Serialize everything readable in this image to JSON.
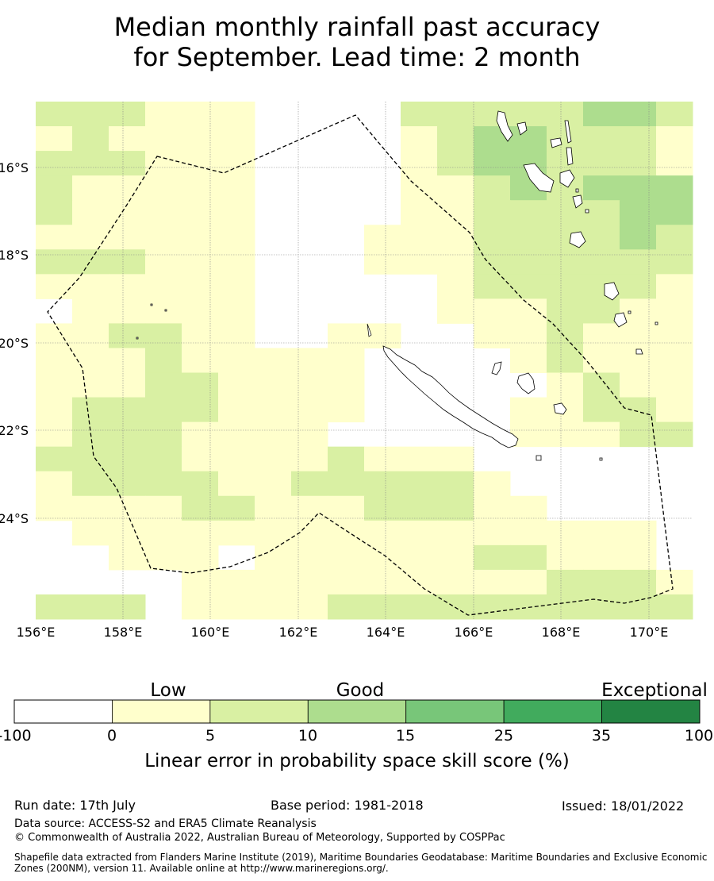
{
  "title": {
    "line1": "Median monthly rainfall past accuracy",
    "line2": "for September. Lead time: 2 month"
  },
  "map": {
    "lon_ticks": [
      "156°E",
      "158°E",
      "160°E",
      "162°E",
      "164°E",
      "166°E",
      "168°E",
      "170°E"
    ],
    "lat_ticks": [
      "16°S",
      "18°S",
      "20°S",
      "22°S",
      "24°S"
    ]
  },
  "colorbar": {
    "categories": [
      "Low",
      "Good",
      "Exceptional"
    ],
    "ticks": [
      "-100",
      "0",
      "5",
      "10",
      "15",
      "25",
      "35",
      "100"
    ],
    "colors": [
      "#ffffff",
      "#ffffcc",
      "#d9f0a3",
      "#addd8e",
      "#78c679",
      "#41ab5d",
      "#238443"
    ],
    "label": "Linear error in probability space skill score (%)"
  },
  "footer": {
    "run_date": "Run date: 17th July",
    "base_period": "Base period: 1981-2018",
    "issued": "Issued: 18/01/2022",
    "data_source": "Data source: ACCESS-S2 and ERA5 Climate Reanalysis",
    "copyright": "© Commonwealth of Australia 2022, Australian Bureau of Meteorology, Supported by COSPPac",
    "shapefile": "Shapefile data extracted from Flanders Marine Institute (2019), Maritime Boundaries Geodatabase: Maritime Boundaries and Exclusive Economic Zones (200NM), version 11. Available online at http://www.marineregions.org/."
  }
}
